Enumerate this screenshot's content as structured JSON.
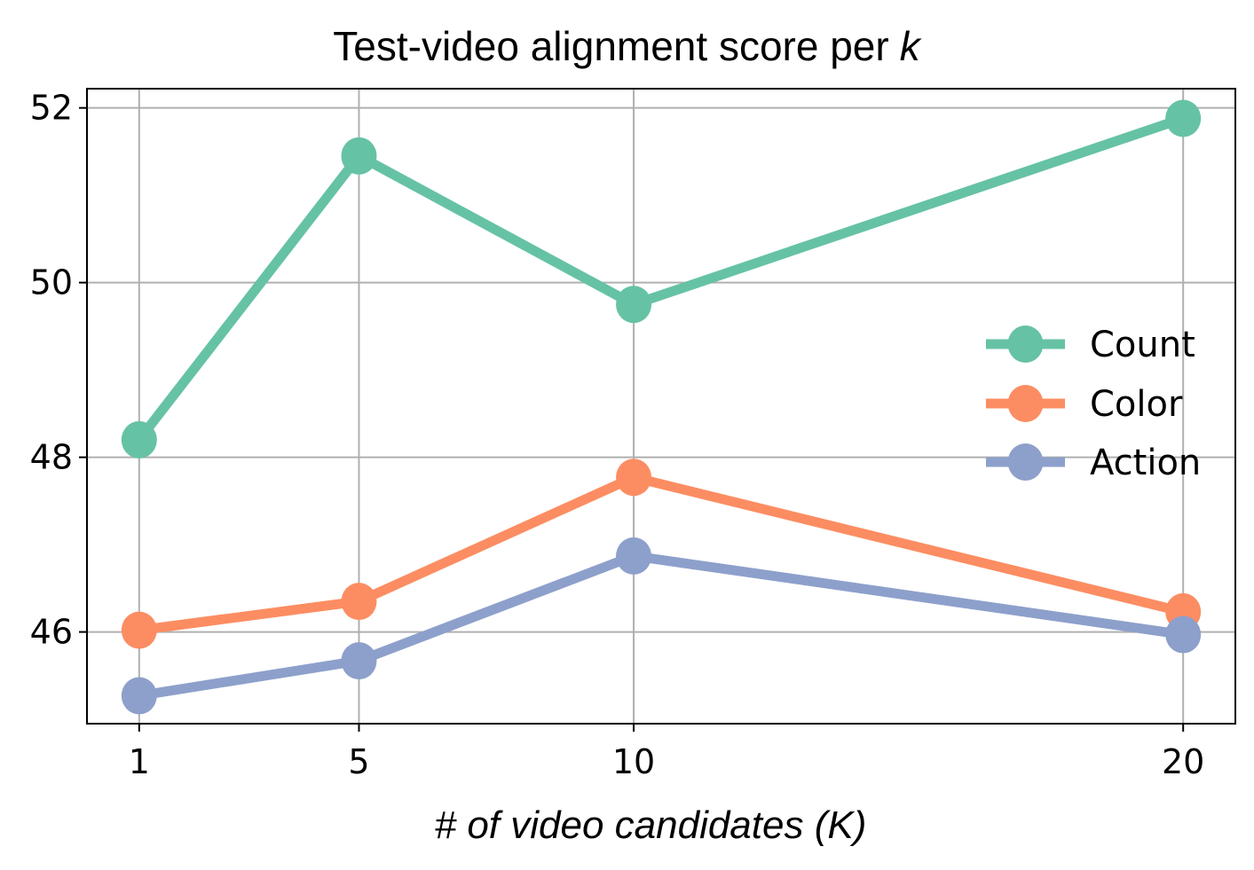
{
  "chart_data": {
    "type": "line",
    "title": "Test-video alignment score per",
    "title_italic": "k",
    "xlabel": "# of video candidates (K)",
    "ylabel": "",
    "x": [
      1,
      5,
      10,
      20
    ],
    "x_tick_labels": [
      "1",
      "5",
      "10",
      "20"
    ],
    "y_ticks": [
      46,
      48,
      50,
      52
    ],
    "y_tick_labels": [
      "46",
      "48",
      "50",
      "52"
    ],
    "xlim": [
      0.05,
      20.95
    ],
    "ylim": [
      44.95,
      52.22
    ],
    "grid": true,
    "legend_position": "center-right",
    "series": [
      {
        "name": "Count",
        "color": "#66c2a5",
        "values": [
          48.2,
          51.45,
          49.75,
          51.88
        ]
      },
      {
        "name": "Color",
        "color": "#fc8d62",
        "values": [
          46.02,
          46.35,
          47.77,
          46.23
        ]
      },
      {
        "name": "Action",
        "color": "#8da0cb",
        "values": [
          45.27,
          45.67,
          46.87,
          45.97
        ]
      }
    ]
  }
}
